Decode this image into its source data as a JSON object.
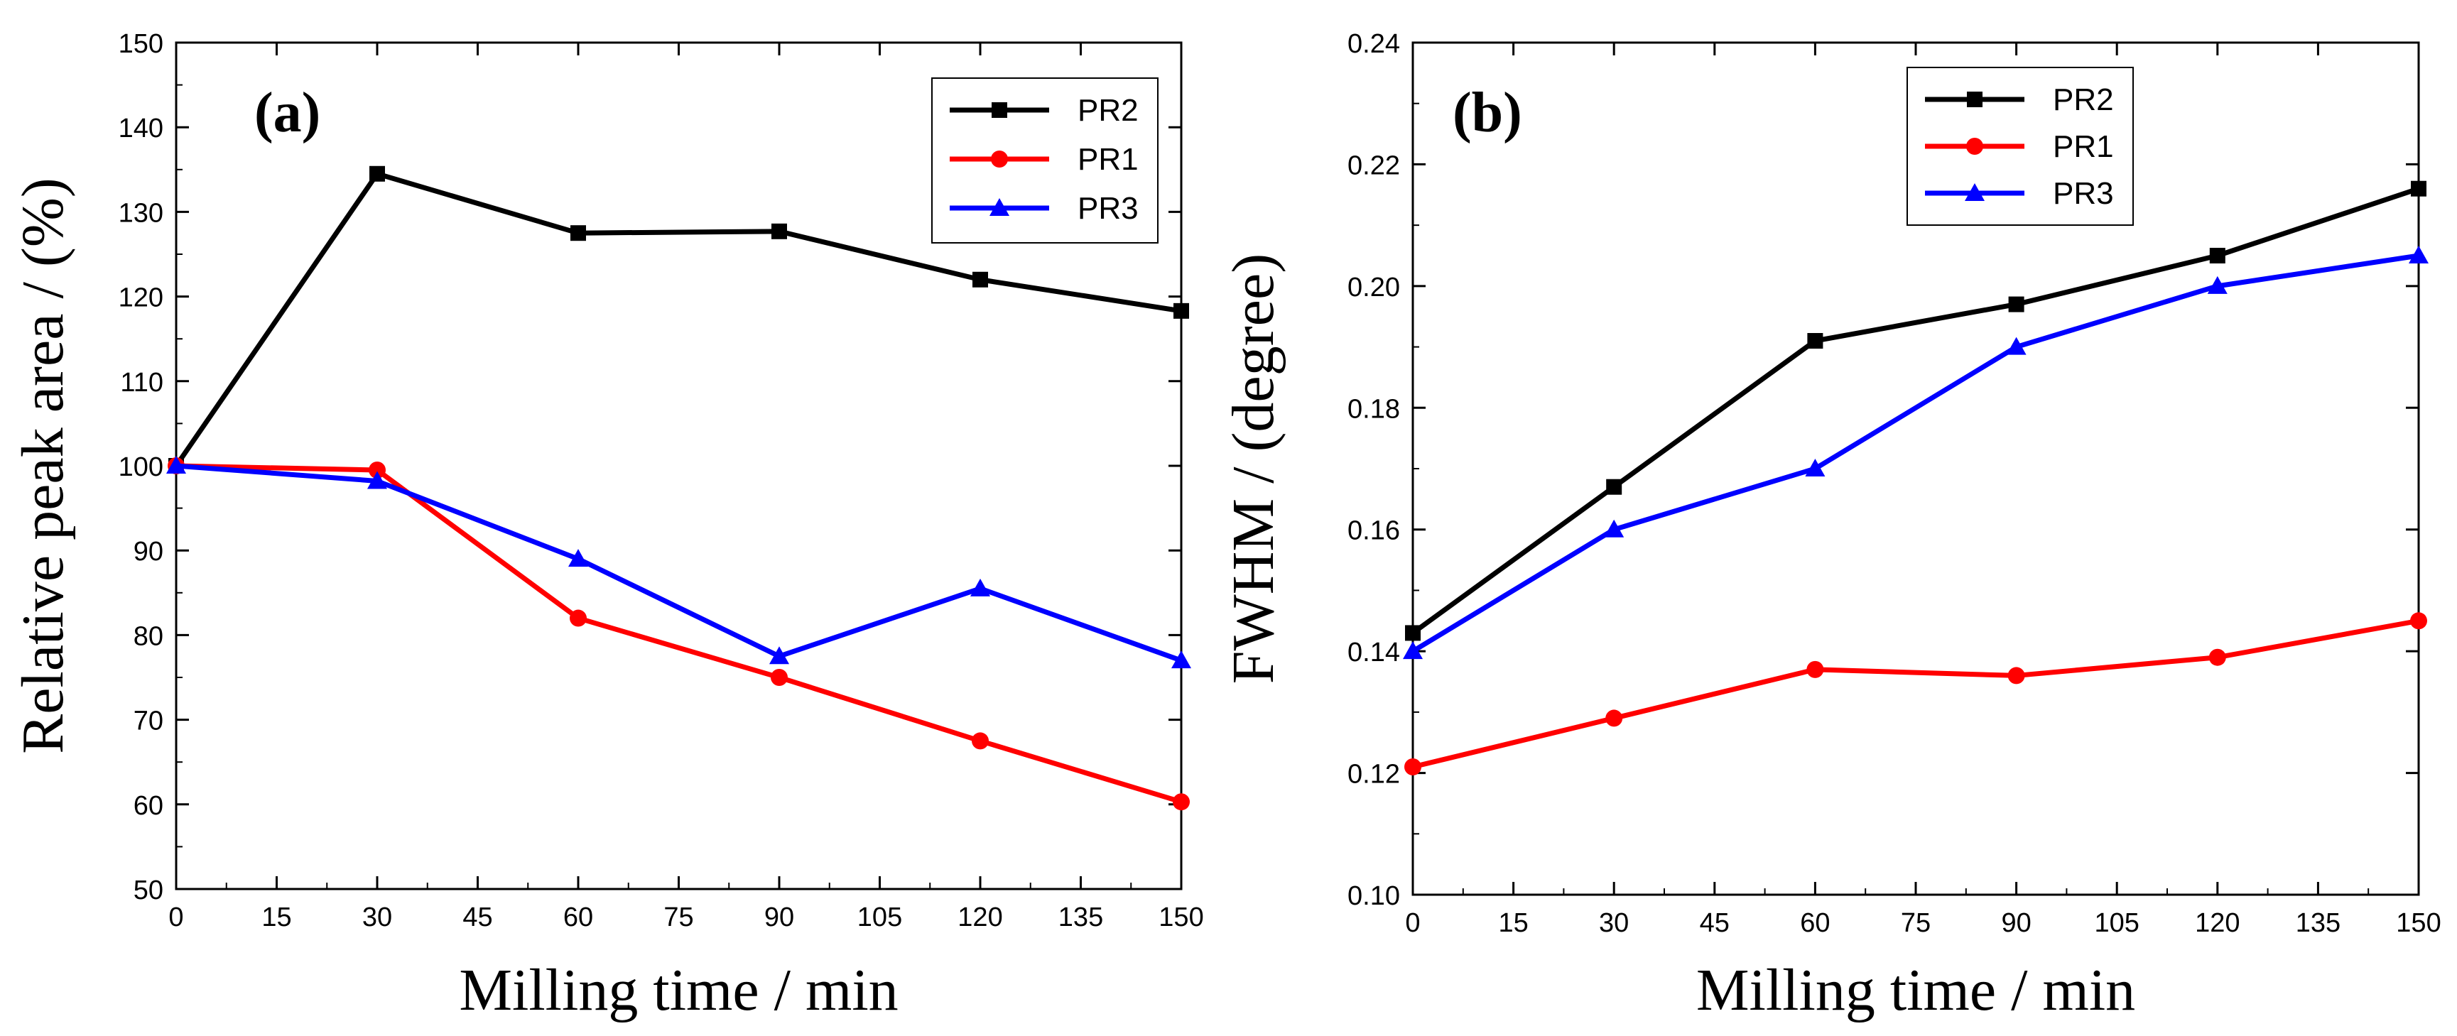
{
  "chart_data": [
    {
      "type": "line",
      "panel_label": "(a)",
      "xlabel": "Milling time / min",
      "ylabel": "Relative peak area / (%)",
      "xlim": [
        0,
        150
      ],
      "ylim": [
        50,
        150
      ],
      "xticks": [
        0,
        15,
        30,
        45,
        60,
        75,
        90,
        105,
        120,
        135,
        150
      ],
      "yticks": [
        50,
        60,
        70,
        80,
        90,
        100,
        110,
        120,
        130,
        140,
        150
      ],
      "ytick_labels": [
        "50",
        "60",
        "70",
        "80",
        "90",
        "100",
        "110",
        "120",
        "130",
        "140",
        "150"
      ],
      "x": [
        0,
        30,
        60,
        90,
        120,
        150
      ],
      "legend_position": "top-right",
      "series": [
        {
          "name": "PR2",
          "color": "#000000",
          "marker": "square",
          "values": [
            100,
            134.5,
            127.5,
            127.7,
            122,
            118.3
          ]
        },
        {
          "name": "PR1",
          "color": "#ff0000",
          "marker": "circle",
          "values": [
            100,
            99.5,
            82,
            75,
            67.5,
            60.3
          ]
        },
        {
          "name": "PR3",
          "color": "#0000ff",
          "marker": "triangle",
          "values": [
            100,
            98.2,
            89,
            77.5,
            85.5,
            77
          ]
        }
      ]
    },
    {
      "type": "line",
      "panel_label": "(b)",
      "xlabel": "Milling time / min",
      "ylabel": "FWHM / (degree)",
      "xlim": [
        0,
        150
      ],
      "ylim": [
        0.1,
        0.24
      ],
      "xticks": [
        0,
        15,
        30,
        45,
        60,
        75,
        90,
        105,
        120,
        135,
        150
      ],
      "yticks": [
        0.1,
        0.12,
        0.14,
        0.16,
        0.18,
        0.2,
        0.22,
        0.24
      ],
      "ytick_labels": [
        "0.10",
        "0.12",
        "0.14",
        "0.16",
        "0.18",
        "0.20",
        "0.22",
        "0.24"
      ],
      "x": [
        0,
        30,
        60,
        90,
        120,
        150
      ],
      "legend_position": "top-center",
      "series": [
        {
          "name": "PR2",
          "color": "#000000",
          "marker": "square",
          "values": [
            0.143,
            0.167,
            0.191,
            0.197,
            0.205,
            0.216
          ]
        },
        {
          "name": "PR1",
          "color": "#ff0000",
          "marker": "circle",
          "values": [
            0.121,
            0.129,
            0.137,
            0.136,
            0.139,
            0.145
          ]
        },
        {
          "name": "PR3",
          "color": "#0000ff",
          "marker": "triangle",
          "values": [
            0.14,
            0.16,
            0.17,
            0.19,
            0.2,
            0.205
          ]
        }
      ]
    }
  ]
}
